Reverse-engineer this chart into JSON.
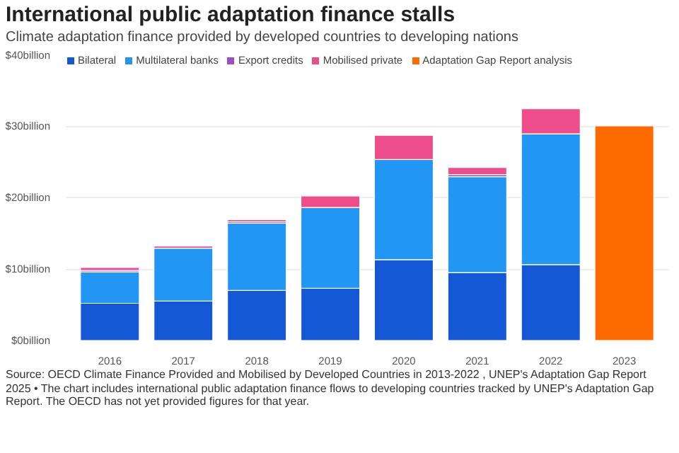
{
  "chart_data": {
    "type": "bar",
    "stacked": true,
    "title": "International public adaptation finance stalls",
    "subtitle": "Climate adaptation finance provided by developed countries to developing nations",
    "categories": [
      "2016",
      "2017",
      "2018",
      "2019",
      "2020",
      "2021",
      "2022",
      "2023"
    ],
    "series": [
      {
        "name": "Bilateral",
        "color": "#1558d6",
        "values": [
          5.2,
          5.5,
          7.0,
          7.3,
          11.3,
          9.5,
          10.6,
          null
        ]
      },
      {
        "name": "Multilateral banks",
        "color": "#2196f3",
        "values": [
          4.4,
          7.4,
          9.4,
          11.3,
          14.0,
          13.4,
          18.3,
          null
        ]
      },
      {
        "name": "Export credits",
        "color": "#9b4dca",
        "values": [
          0.2,
          null,
          0.2,
          null,
          0.0,
          0.3,
          0.0,
          null
        ]
      },
      {
        "name": "Mobilised private",
        "color": "#ee4d8b",
        "values": [
          0.4,
          0.3,
          0.3,
          1.6,
          3.4,
          1.0,
          3.5,
          null
        ]
      },
      {
        "name": "Adaptation Gap Report analysis",
        "color": "#ff6a00",
        "values": [
          null,
          null,
          null,
          null,
          null,
          null,
          null,
          30.0
        ]
      }
    ],
    "ylim": [
      0,
      40
    ],
    "yticks": [
      {
        "value": 0,
        "label": "$0billion"
      },
      {
        "value": 10,
        "label": "$10billion"
      },
      {
        "value": 20,
        "label": "$20billion"
      },
      {
        "value": 30,
        "label": "$30billion"
      },
      {
        "value": 40,
        "label": "$40billion"
      }
    ],
    "grid": "y",
    "legend": "top left",
    "annotations": [
      "Source: OECD Climate Finance Provided and Mobilised by Developed Countries in 2013-2022 , UNEP's Adaptation Gap Report 2025 • The chart includes international public adaptation finance flows to developing countries tracked by UNEP's Adaptation Gap Report. The OECD has not yet provided figures for that year."
    ]
  }
}
